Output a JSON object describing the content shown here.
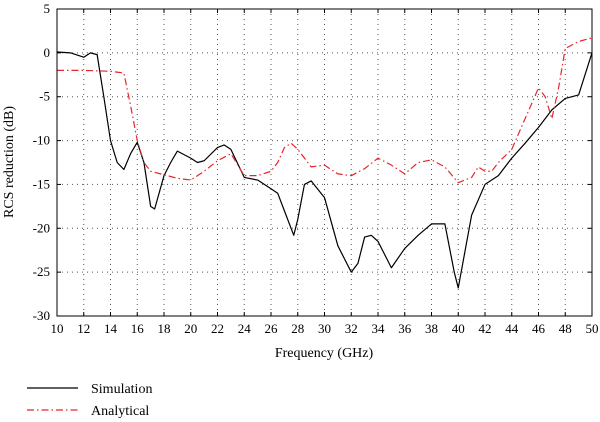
{
  "chart_data": {
    "type": "line",
    "xlabel": "Frequency (GHz)",
    "ylabel": "RCS reduction (dB)",
    "xlim": [
      10,
      50
    ],
    "ylim": [
      -30,
      5
    ],
    "xticks": [
      10,
      12,
      14,
      16,
      18,
      20,
      22,
      24,
      26,
      28,
      30,
      32,
      34,
      36,
      38,
      40,
      42,
      44,
      46,
      48,
      50
    ],
    "yticks": [
      5,
      0,
      -5,
      -10,
      -15,
      -20,
      -25,
      -30
    ],
    "grid": "dotted",
    "legend_placement": "below plot, left",
    "series": [
      {
        "name": "Simulation",
        "color": "#000000",
        "style": "solid",
        "points": [
          [
            10,
            0.1
          ],
          [
            11,
            0.0
          ],
          [
            12,
            -0.5
          ],
          [
            12.5,
            0.0
          ],
          [
            13,
            -0.2
          ],
          [
            13.5,
            -5
          ],
          [
            14,
            -10
          ],
          [
            14.5,
            -12.5
          ],
          [
            15,
            -13.3
          ],
          [
            15.5,
            -11.5
          ],
          [
            16,
            -10.2
          ],
          [
            16.5,
            -12.5
          ],
          [
            17,
            -17.5
          ],
          [
            17.3,
            -17.8
          ],
          [
            18,
            -14
          ],
          [
            18.5,
            -12.5
          ],
          [
            19,
            -11.2
          ],
          [
            20,
            -12.0
          ],
          [
            20.5,
            -12.5
          ],
          [
            21,
            -12.3
          ],
          [
            22,
            -10.8
          ],
          [
            22.5,
            -10.5
          ],
          [
            23,
            -11
          ],
          [
            24,
            -14.2
          ],
          [
            25,
            -14.5
          ],
          [
            26,
            -15.5
          ],
          [
            26.5,
            -16
          ],
          [
            27,
            -18
          ],
          [
            27.7,
            -20.8
          ],
          [
            28,
            -19
          ],
          [
            28.5,
            -15
          ],
          [
            29,
            -14.6
          ],
          [
            30,
            -16.5
          ],
          [
            31,
            -22
          ],
          [
            32,
            -25.0
          ],
          [
            32.5,
            -24
          ],
          [
            33,
            -21.0
          ],
          [
            33.5,
            -20.8
          ],
          [
            34,
            -21.5
          ],
          [
            35,
            -24.5
          ],
          [
            36,
            -22.3
          ],
          [
            37,
            -20.8
          ],
          [
            38,
            -19.5
          ],
          [
            39,
            -19.5
          ],
          [
            39.7,
            -25
          ],
          [
            40,
            -26.8
          ],
          [
            41,
            -18.5
          ],
          [
            42,
            -15.0
          ],
          [
            43,
            -14.0
          ],
          [
            44,
            -12
          ],
          [
            45,
            -10.3
          ],
          [
            46,
            -8.5
          ],
          [
            47,
            -6.5
          ],
          [
            48,
            -5.2
          ],
          [
            49,
            -4.8
          ],
          [
            50,
            0.0
          ]
        ]
      },
      {
        "name": "Analytical",
        "color": "#e8242a",
        "style": "dashdot",
        "points": [
          [
            10,
            -2.0
          ],
          [
            12,
            -2.0
          ],
          [
            14,
            -2.1
          ],
          [
            15,
            -2.3
          ],
          [
            15.5,
            -6
          ],
          [
            16,
            -10
          ],
          [
            16.5,
            -12.5
          ],
          [
            17,
            -13.5
          ],
          [
            18,
            -13.9
          ],
          [
            19,
            -14.3
          ],
          [
            20,
            -14.5
          ],
          [
            21,
            -13.5
          ],
          [
            22,
            -12.3
          ],
          [
            23,
            -11.5
          ],
          [
            24,
            -14.0
          ],
          [
            25,
            -14.0
          ],
          [
            26,
            -13.5
          ],
          [
            26.5,
            -12.5
          ],
          [
            27,
            -10.8
          ],
          [
            27.5,
            -10.3
          ],
          [
            28,
            -11.0
          ],
          [
            29,
            -13.0
          ],
          [
            30,
            -12.8
          ],
          [
            31,
            -13.8
          ],
          [
            32,
            -14.0
          ],
          [
            33,
            -13.2
          ],
          [
            34,
            -12.0
          ],
          [
            35,
            -12.8
          ],
          [
            36,
            -13.8
          ],
          [
            37,
            -12.5
          ],
          [
            38,
            -12.2
          ],
          [
            39,
            -13.0
          ],
          [
            40,
            -14.8
          ],
          [
            41,
            -14.2
          ],
          [
            41.5,
            -13.0
          ],
          [
            42,
            -13.5
          ],
          [
            42.5,
            -13.5
          ],
          [
            43,
            -12.5
          ],
          [
            44,
            -11.0
          ],
          [
            45,
            -7.5
          ],
          [
            46,
            -4.0
          ],
          [
            46.5,
            -5.0
          ],
          [
            47,
            -7.5
          ],
          [
            47.5,
            -4
          ],
          [
            48,
            0.5
          ],
          [
            49,
            1.3
          ],
          [
            50,
            1.7
          ]
        ]
      }
    ]
  }
}
